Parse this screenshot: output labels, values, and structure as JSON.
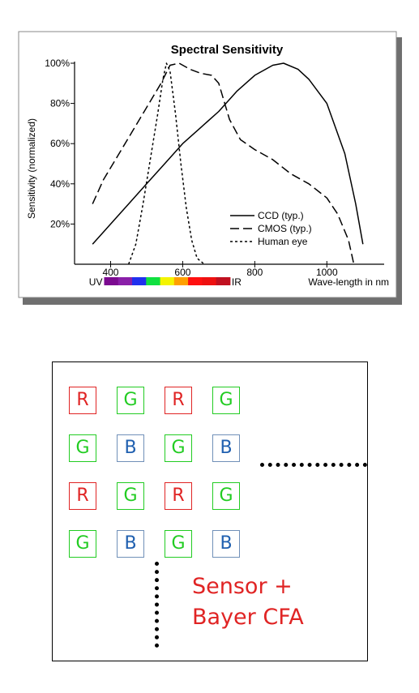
{
  "chart_data": {
    "type": "line",
    "title": "Spectral Sensitivity",
    "ylabel": "Sensitivity (normalized)",
    "xlabel": "Wave-length in nm",
    "xlim": [
      300,
      1150
    ],
    "ylim": [
      0,
      100
    ],
    "x_ticks": [
      400,
      600,
      800,
      1000
    ],
    "y_ticks": [
      20,
      40,
      60,
      80,
      100
    ],
    "x_tick_labels": [
      "400",
      "600",
      "800",
      "1000"
    ],
    "y_tick_labels": [
      "20%",
      "40%",
      "60%",
      "80%",
      "100%"
    ],
    "spectrum_band_labels": {
      "left": "UV",
      "right": "IR"
    },
    "spectrum_colors": [
      "#7b0a90",
      "#8a1fa8",
      "#2030ee",
      "#10e040",
      "#f4f400",
      "#ffa000",
      "#ff1010",
      "#ee1010",
      "#c01020"
    ],
    "legend_position": "bottom-right",
    "series": [
      {
        "name": "CCD (typ.)",
        "dash": "solid",
        "points": [
          [
            350,
            10
          ],
          [
            400,
            20
          ],
          [
            450,
            30
          ],
          [
            500,
            40
          ],
          [
            550,
            50
          ],
          [
            600,
            60
          ],
          [
            650,
            68
          ],
          [
            700,
            76
          ],
          [
            750,
            86
          ],
          [
            800,
            94
          ],
          [
            850,
            99
          ],
          [
            880,
            100
          ],
          [
            920,
            97
          ],
          [
            950,
            92
          ],
          [
            1000,
            80
          ],
          [
            1050,
            55
          ],
          [
            1080,
            30
          ],
          [
            1100,
            10
          ]
        ]
      },
      {
        "name": "CMOS (typ.)",
        "dash": "longdash",
        "points": [
          [
            350,
            30
          ],
          [
            380,
            42
          ],
          [
            420,
            54
          ],
          [
            460,
            66
          ],
          [
            500,
            78
          ],
          [
            540,
            90
          ],
          [
            565,
            99
          ],
          [
            590,
            100
          ],
          [
            620,
            97
          ],
          [
            650,
            95
          ],
          [
            680,
            94
          ],
          [
            700,
            90
          ],
          [
            730,
            72
          ],
          [
            760,
            62
          ],
          [
            800,
            57
          ],
          [
            850,
            52
          ],
          [
            900,
            45
          ],
          [
            950,
            40
          ],
          [
            1000,
            33
          ],
          [
            1030,
            25
          ],
          [
            1060,
            12
          ],
          [
            1075,
            0
          ]
        ]
      },
      {
        "name": "Human eye",
        "dash": "dotted",
        "points": [
          [
            450,
            0
          ],
          [
            470,
            10
          ],
          [
            490,
            30
          ],
          [
            510,
            52
          ],
          [
            530,
            74
          ],
          [
            545,
            92
          ],
          [
            555,
            100
          ],
          [
            565,
            96
          ],
          [
            580,
            75
          ],
          [
            595,
            50
          ],
          [
            610,
            28
          ],
          [
            625,
            12
          ],
          [
            640,
            3
          ],
          [
            660,
            0
          ]
        ]
      }
    ]
  },
  "bayer": {
    "rows": [
      [
        "R",
        "G",
        "R",
        "G"
      ],
      [
        "G",
        "B",
        "G",
        "B"
      ],
      [
        "R",
        "G",
        "R",
        "G"
      ],
      [
        "G",
        "B",
        "G",
        "B"
      ]
    ],
    "label_line1": "Sensor +",
    "label_line2": "Bayer CFA"
  }
}
